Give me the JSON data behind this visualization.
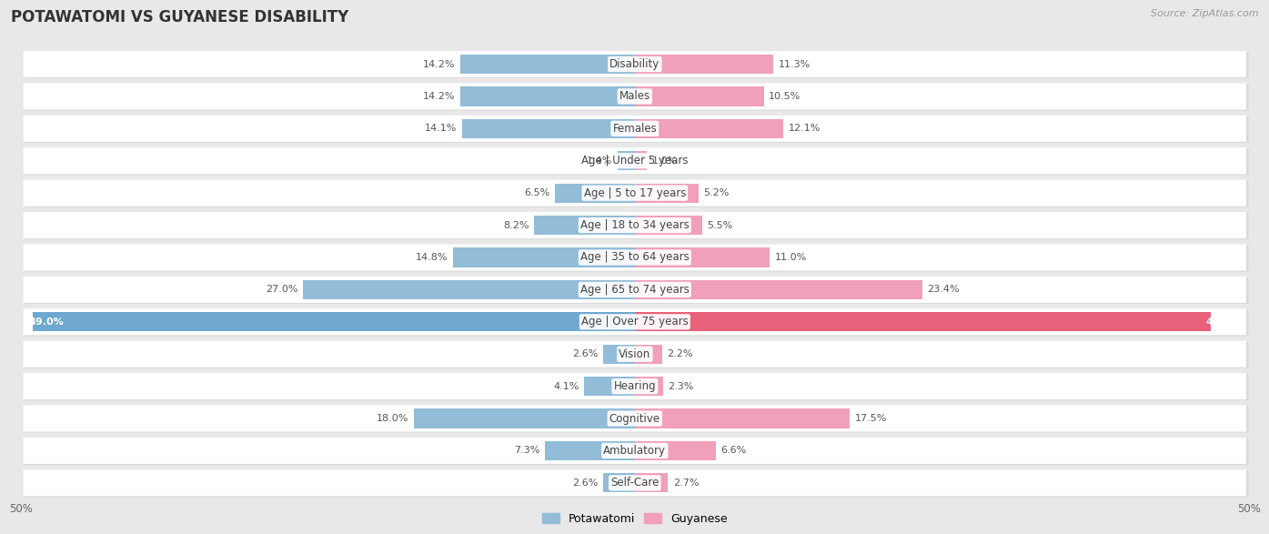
{
  "title": "POTAWATOMI VS GUYANESE DISABILITY",
  "source": "Source: ZipAtlas.com",
  "categories": [
    "Disability",
    "Males",
    "Females",
    "Age | Under 5 years",
    "Age | 5 to 17 years",
    "Age | 18 to 34 years",
    "Age | 35 to 64 years",
    "Age | 65 to 74 years",
    "Age | Over 75 years",
    "Vision",
    "Hearing",
    "Cognitive",
    "Ambulatory",
    "Self-Care"
  ],
  "potawatomi": [
    14.2,
    14.2,
    14.1,
    1.4,
    6.5,
    8.2,
    14.8,
    27.0,
    49.0,
    2.6,
    4.1,
    18.0,
    7.3,
    2.6
  ],
  "guyanese": [
    11.3,
    10.5,
    12.1,
    1.0,
    5.2,
    5.5,
    11.0,
    23.4,
    46.9,
    2.2,
    2.3,
    17.5,
    6.6,
    2.7
  ],
  "potawatomi_color": "#92bcd8",
  "guyanese_color": "#f0a0b8",
  "potawatomi_highlight": "#6fa8d0",
  "guyanese_highlight": "#e8607a",
  "axis_limit": 50.0,
  "bg_color": "#e8e8e8",
  "row_bg": "#f2f2f2",
  "highlight_row_bg": "#e0e0e0",
  "title_fontsize": 12,
  "label_fontsize": 8.5,
  "value_fontsize": 8,
  "legend_fontsize": 9
}
